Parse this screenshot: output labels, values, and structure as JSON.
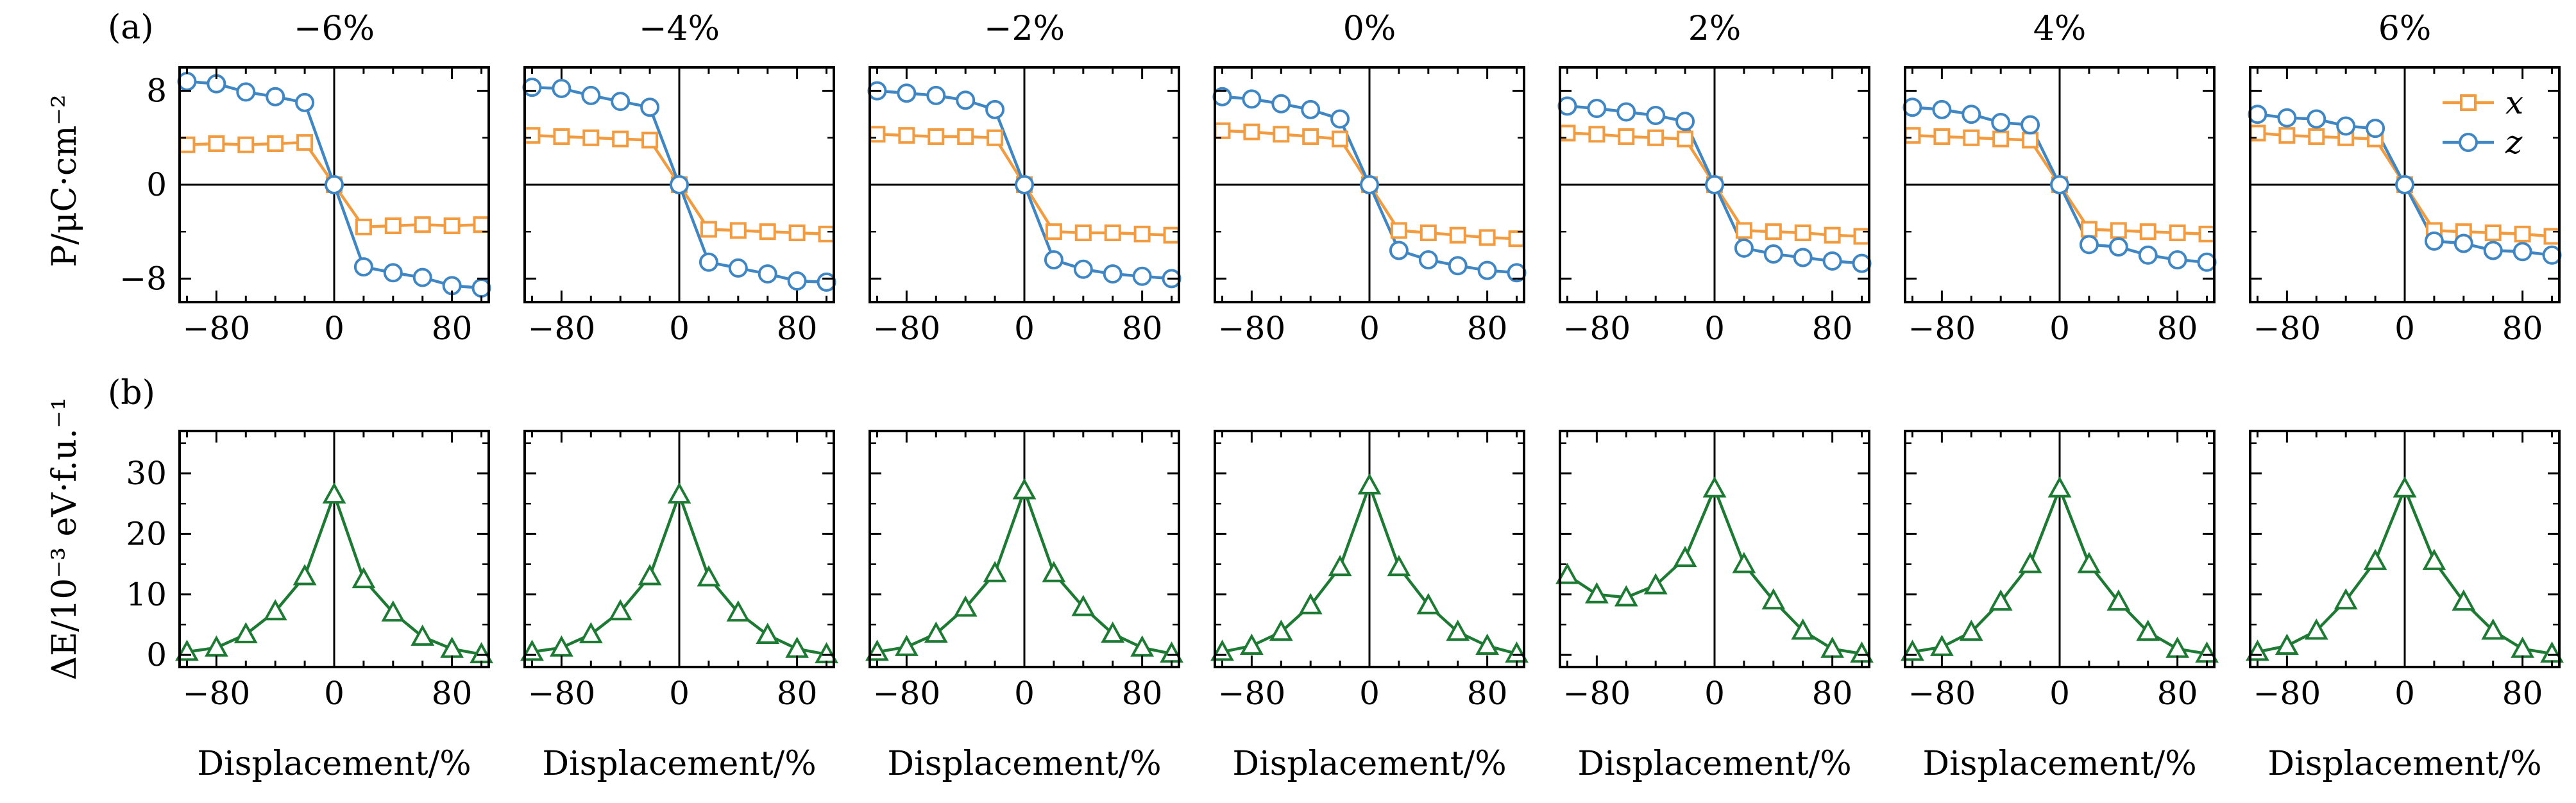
{
  "figure": {
    "row_a_label": "(a)",
    "row_b_label": "(b)",
    "ylabel_top": "P/μC·cm⁻²",
    "ylabel_bottom": "ΔE/10⁻³ eV·f.u.⁻¹",
    "xlabel": "Displacement/%"
  },
  "colors": {
    "x": "#f29b3f",
    "z": "#3f86c4",
    "energy": "#1c7a33"
  },
  "chart_data": {
    "type": "line",
    "strains": [
      "−6%",
      "−4%",
      "−2%",
      "0%",
      "2%",
      "4%",
      "6%"
    ],
    "x": [
      -100,
      -80,
      -60,
      -40,
      -20,
      0,
      20,
      40,
      60,
      80,
      100
    ],
    "xticks": [
      "−80",
      "0",
      "80"
    ],
    "xlim": [
      -105,
      105
    ],
    "polarization": {
      "ylim": [
        -10,
        10
      ],
      "yticks": [
        "8",
        "0",
        "−8"
      ],
      "legend": [
        "x",
        "z"
      ],
      "legend_position": "top-right of last panel",
      "series": [
        {
          "strain": "−6%",
          "x": [
            3.4,
            3.5,
            3.4,
            3.5,
            3.6,
            0,
            -3.6,
            -3.5,
            -3.4,
            -3.5,
            -3.4
          ],
          "z": [
            8.8,
            8.6,
            7.9,
            7.5,
            7.0,
            0,
            -7.0,
            -7.5,
            -7.9,
            -8.6,
            -8.8
          ]
        },
        {
          "strain": "−4%",
          "x": [
            4.2,
            4.1,
            4.0,
            3.9,
            3.8,
            0,
            -3.8,
            -3.9,
            -4.0,
            -4.1,
            -4.2
          ],
          "z": [
            8.3,
            8.2,
            7.6,
            7.1,
            6.6,
            0,
            -6.6,
            -7.1,
            -7.6,
            -8.2,
            -8.3
          ]
        },
        {
          "strain": "−2%",
          "x": [
            4.3,
            4.2,
            4.1,
            4.1,
            4.0,
            0,
            -4.0,
            -4.1,
            -4.1,
            -4.2,
            -4.3
          ],
          "z": [
            8.0,
            7.8,
            7.6,
            7.2,
            6.4,
            0,
            -6.4,
            -7.2,
            -7.6,
            -7.8,
            -8.0
          ]
        },
        {
          "strain": "0%",
          "x": [
            4.6,
            4.5,
            4.3,
            4.1,
            3.9,
            0,
            -3.9,
            -4.1,
            -4.3,
            -4.5,
            -4.6
          ],
          "z": [
            7.5,
            7.3,
            6.9,
            6.4,
            5.6,
            0,
            -5.6,
            -6.4,
            -6.9,
            -7.3,
            -7.5
          ]
        },
        {
          "strain": "2%",
          "x": [
            4.4,
            4.3,
            4.1,
            4.0,
            3.9,
            0,
            -3.9,
            -4.0,
            -4.1,
            -4.3,
            -4.4
          ],
          "z": [
            6.7,
            6.5,
            6.2,
            5.9,
            5.4,
            0,
            -5.4,
            -5.9,
            -6.2,
            -6.5,
            -6.7
          ]
        },
        {
          "strain": "4%",
          "x": [
            4.2,
            4.1,
            4.0,
            3.9,
            3.8,
            0,
            -3.8,
            -3.9,
            -4.0,
            -4.1,
            -4.2
          ],
          "z": [
            6.6,
            6.4,
            6.0,
            5.3,
            5.1,
            0,
            -5.1,
            -5.3,
            -6.0,
            -6.4,
            -6.6
          ]
        },
        {
          "strain": "6%",
          "x": [
            4.4,
            4.2,
            4.1,
            4.0,
            3.9,
            0,
            -3.9,
            -4.0,
            -4.1,
            -4.2,
            -4.4
          ],
          "z": [
            6.0,
            5.7,
            5.6,
            5.0,
            4.8,
            0,
            -4.8,
            -5.0,
            -5.6,
            -5.7,
            -6.0
          ]
        }
      ]
    },
    "energy": {
      "ylim": [
        -2,
        37
      ],
      "yticks": [
        "0",
        "10",
        "20",
        "30"
      ],
      "series": [
        {
          "strain": "−6%",
          "dE": [
            0.5,
            1.2,
            3.4,
            7.2,
            13.0,
            26.5,
            12.5,
            7.0,
            3.0,
            1.0,
            0.1
          ]
        },
        {
          "strain": "−4%",
          "dE": [
            0.5,
            1.2,
            3.4,
            7.2,
            13.0,
            26.5,
            12.8,
            7.0,
            3.3,
            1.0,
            0.1
          ]
        },
        {
          "strain": "−2%",
          "dE": [
            0.5,
            1.3,
            3.5,
            7.8,
            13.5,
            27.2,
            13.5,
            7.9,
            3.5,
            1.2,
            0.2
          ]
        },
        {
          "strain": "0%",
          "dE": [
            0.5,
            1.5,
            3.8,
            8.2,
            14.5,
            28.0,
            14.5,
            8.2,
            3.8,
            1.5,
            0.2
          ]
        },
        {
          "strain": "2%",
          "dE": [
            13.2,
            10.0,
            9.5,
            11.5,
            16.0,
            27.5,
            15.0,
            9.0,
            4.0,
            1.0,
            0.2
          ]
        },
        {
          "strain": "4%",
          "dE": [
            0.5,
            1.3,
            3.8,
            8.8,
            15.0,
            27.5,
            15.0,
            8.8,
            3.8,
            1.0,
            0.2
          ]
        },
        {
          "strain": "6%",
          "dE": [
            0.5,
            1.5,
            4.0,
            9.0,
            15.5,
            27.5,
            15.5,
            8.8,
            4.0,
            1.0,
            0.2
          ]
        }
      ]
    }
  }
}
